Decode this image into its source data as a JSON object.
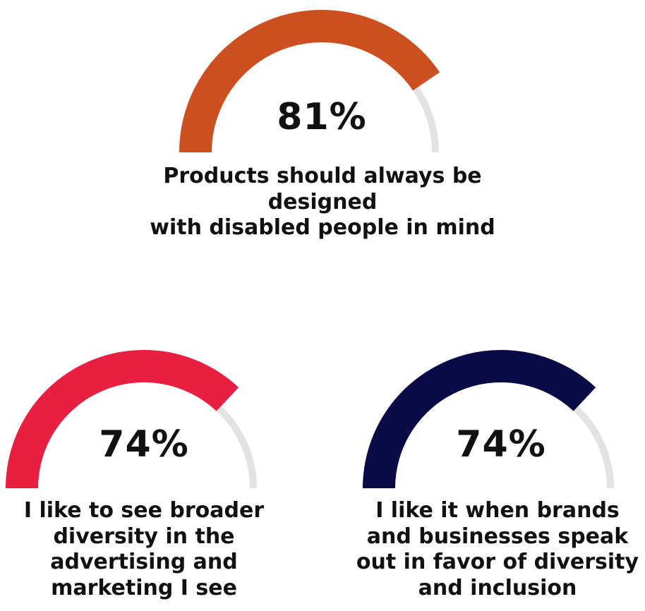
{
  "colors": {
    "track": "#e3e3e3",
    "text": "#111111"
  },
  "chart_data": [
    {
      "type": "gauge",
      "value": 81,
      "max": 100,
      "label": "81%",
      "caption_lines": [
        "Products should always be designed",
        "with disabled people in mind"
      ],
      "color": "#cc4f20"
    },
    {
      "type": "gauge",
      "value": 74,
      "max": 100,
      "label": "74%",
      "caption_lines": [
        "I like to see broader",
        "diversity in the",
        "advertising and",
        "marketing I see"
      ],
      "color": "#e81f40"
    },
    {
      "type": "gauge",
      "value": 74,
      "max": 100,
      "label": "74%",
      "caption_lines": [
        "I like it when brands",
        "and businesses speak",
        "out in favor of diversity",
        "and inclusion"
      ],
      "color": "#0a0a46"
    }
  ]
}
